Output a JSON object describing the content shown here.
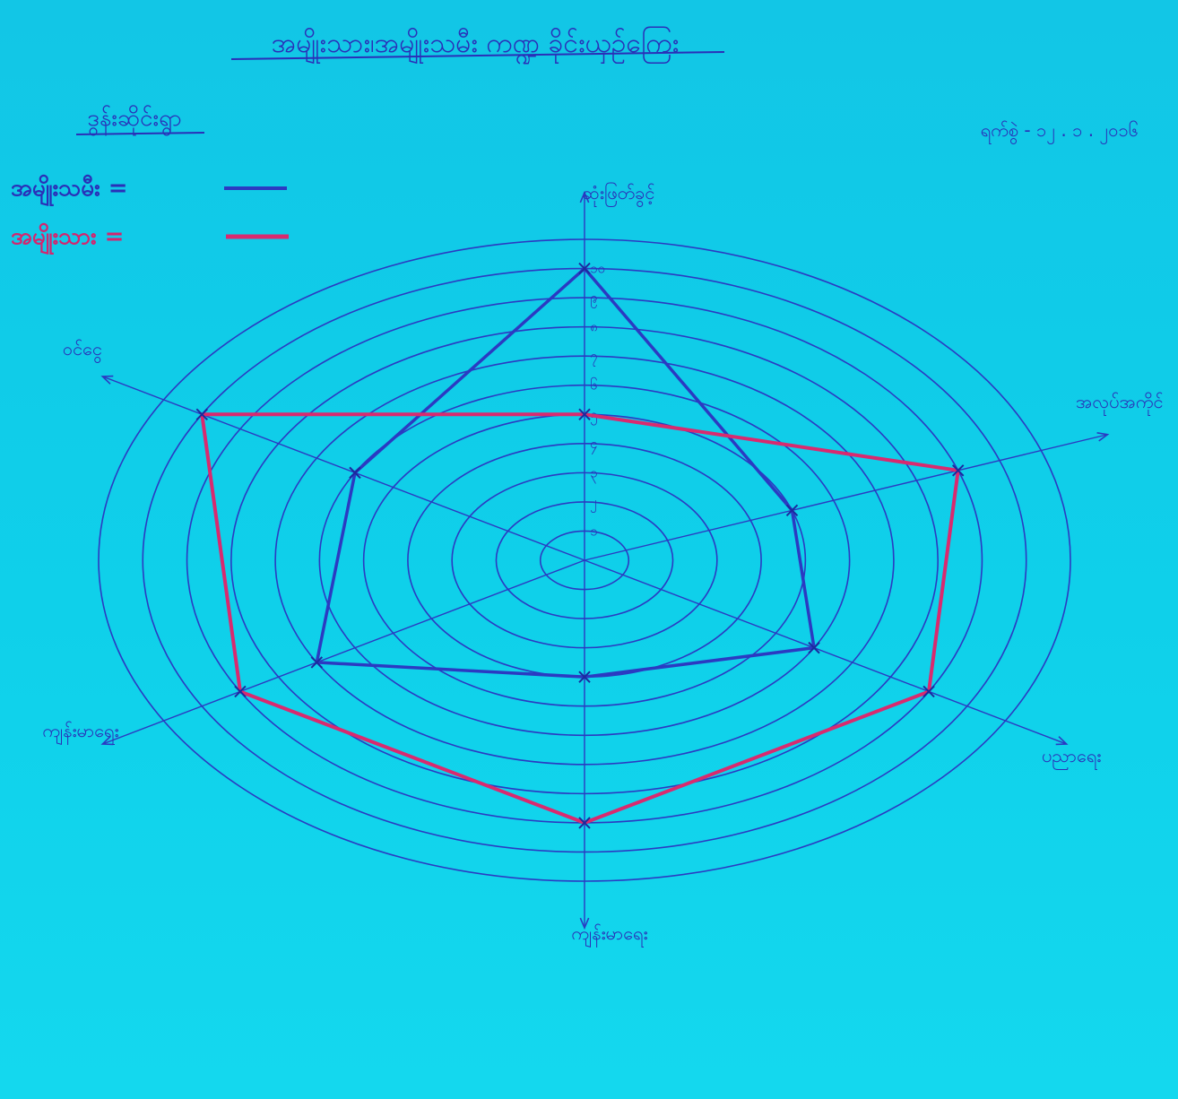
{
  "chart_data": {
    "type": "radar",
    "title": "အမျိုးသား၊အမျိုးသမီး ကဏ္ဍ ခိုင်းယှဉ်ကြေး",
    "subtitle": "ဒွန်းဆိုင်းရွာ",
    "date": "ရက်စွဲ - ၁၂ . ၁ . ၂၀၁၆",
    "axes": [
      "ဆုံးဖြတ်ခွင့်",
      "အလုပ်အကိုင်",
      "ပညာရေး",
      "ကျန်းမာရေး",
      "ကျန်းမာရေး",
      "ဝင်ငွေ"
    ],
    "ticks": [
      "၁",
      "၂",
      "၃",
      "၄",
      "၅",
      "၆",
      "၇",
      "၈",
      "၉",
      "၁၀"
    ],
    "rmax": 10,
    "series": [
      {
        "name": "အမျိုးသမီး",
        "color": "#2b3ac2",
        "values": [
          10,
          5,
          6,
          4,
          7,
          6
        ]
      },
      {
        "name": "အမျိုးသား",
        "color": "#d92a6f",
        "values": [
          5,
          9,
          9,
          9,
          9,
          10
        ]
      }
    ],
    "legend_position": "top-left"
  }
}
